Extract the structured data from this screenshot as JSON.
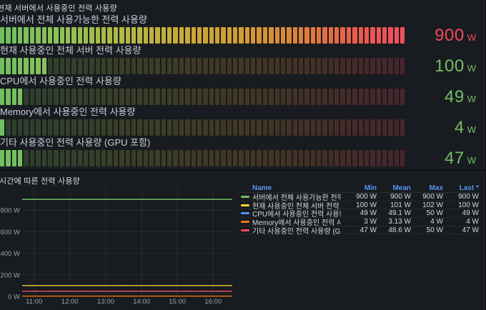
{
  "colors": {
    "page_bg": "#111217",
    "panel_bg": "#181b1f",
    "panel_border": "#24262c",
    "title_text": "#d8d9da",
    "label_text": "#ccccdc",
    "axis_text": "#9da2aa",
    "grid_line": "rgba(204,204,220,0.09)",
    "legend_header": "#5794f2",
    "green": "#73bf69",
    "yellow": "#fade2a",
    "blue": "#5794f2",
    "orange": "#ff780a",
    "red": "#f2495c",
    "gauge_gradient": [
      [
        0.0,
        "#6fbf62"
      ],
      [
        0.15,
        "#8ec255"
      ],
      [
        0.3,
        "#b2b845"
      ],
      [
        0.45,
        "#c9ab3a"
      ],
      [
        0.6,
        "#d29a35"
      ],
      [
        0.75,
        "#dd7f3b"
      ],
      [
        0.88,
        "#e95c4c"
      ],
      [
        1.0,
        "#ef4f5e"
      ]
    ]
  },
  "gauge_panel": {
    "title": "현재 서버에서 사용중인 전력 사용량",
    "unit": "W",
    "max": 900,
    "cells": 68,
    "gauges": [
      {
        "label": "서버에서 전체 사용가능한 전력 사용량",
        "value": 900,
        "value_color": "#f2495c"
      },
      {
        "label": "현재 사용중인 전체 서버 전력 사용량",
        "value": 100,
        "value_color": "#73bf69"
      },
      {
        "label": "CPU에서 사용중인 전력 사용량",
        "value": 49,
        "value_color": "#73bf69"
      },
      {
        "label": "Memory에서 사용중인 전력 사용량",
        "value": 4,
        "value_color": "#73bf69"
      },
      {
        "label": "기타 사용중인 전력 사용량 (GPU 포함)",
        "value": 47,
        "value_color": "#73bf69"
      }
    ]
  },
  "timeseries_panel": {
    "title": "시간에 따른 전력 사용량",
    "legend_columns": [
      "Name",
      "Min",
      "Mean",
      "Max",
      "Last *"
    ]
  },
  "chart_data": {
    "type": "line",
    "title": "시간에 따른 전력 사용량",
    "unit": "W",
    "grid": true,
    "legend_position": "right-table",
    "x_range": [
      "10:40",
      "16:32"
    ],
    "x_ticks": [
      "11:00",
      "12:00",
      "13:00",
      "14:00",
      "15:00",
      "16:00"
    ],
    "y_ticks": [
      0,
      200,
      400,
      600,
      800
    ],
    "y_tick_labels": [
      "0 W",
      "200 W",
      "400 W",
      "600 W",
      "800 W"
    ],
    "ylim": [
      0,
      1020
    ],
    "series": [
      {
        "name": "서버에서 전체 사용가능한 전력 사용량",
        "color": "#73bf69",
        "value": 900,
        "min": 900,
        "mean": 900,
        "max": 900,
        "last": 900
      },
      {
        "name": "현재 사용중인 전체 서버 전력 사용량",
        "color": "#fade2a",
        "value": 101,
        "min": 100,
        "mean": 101,
        "max": 102,
        "last": 100
      },
      {
        "name": "CPU에서 사용중인 전력 사용량",
        "color": "#5794f2",
        "value": 49.1,
        "min": 49,
        "mean": 49.1,
        "max": 50,
        "last": 49
      },
      {
        "name": "Memory에서 사용중인 전력 사용량",
        "color": "#ff780a",
        "value": 3.13,
        "min": 3,
        "mean": 3.13,
        "max": 4,
        "last": 4
      },
      {
        "name": "기타 사용중인 전력 사용량 (GPU 포함)",
        "color": "#f2495c",
        "value": 48.6,
        "min": 47,
        "mean": 48.6,
        "max": 50,
        "last": 47
      }
    ]
  }
}
